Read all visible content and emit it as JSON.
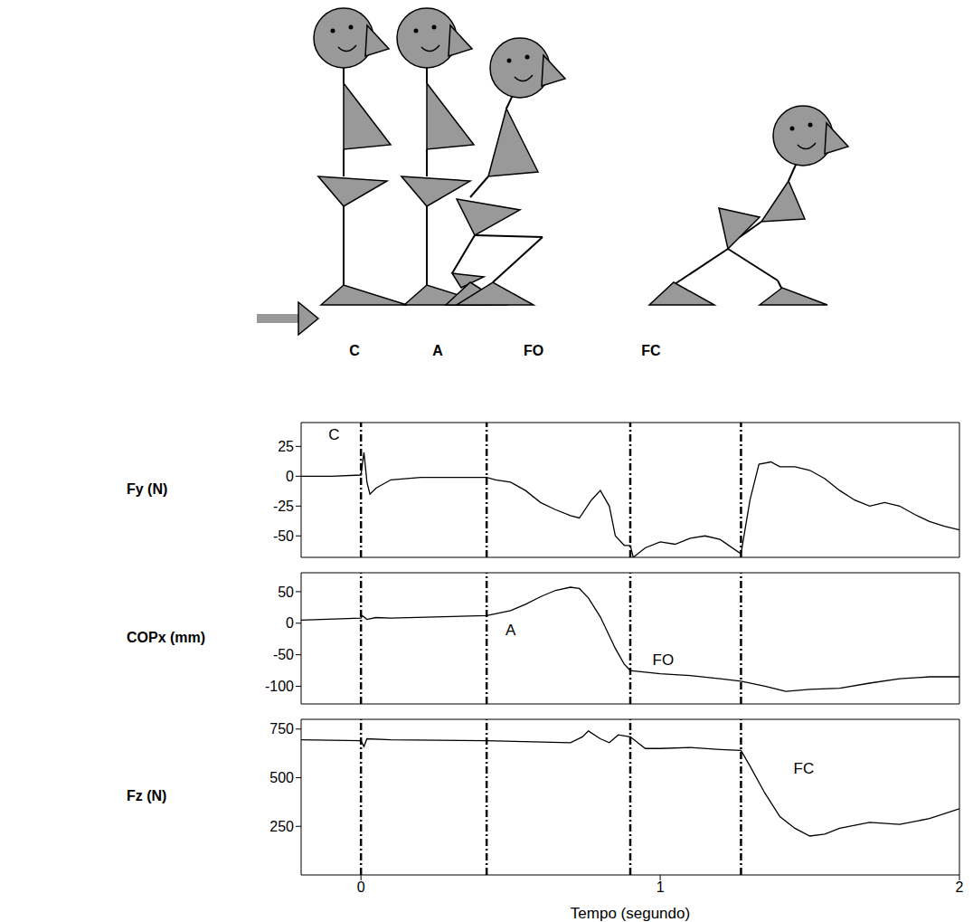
{
  "figure_labels": [
    "C",
    "A",
    "FO",
    "FC"
  ],
  "chart_data": [
    {
      "type": "line",
      "y_label": "Fy (N)",
      "color": "#000000",
      "xlim": [
        -0.2,
        2
      ],
      "xticks": [
        0,
        1,
        2
      ],
      "ylim": [
        -68,
        45
      ],
      "yticks": [
        -50,
        -25,
        0,
        25
      ],
      "tick_labels": "y",
      "vertical_lines": [
        0,
        0.42,
        0.9,
        1.27
      ],
      "annotations": [
        {
          "text": "C",
          "x": -0.09,
          "y": 35
        }
      ],
      "x": [
        -0.2,
        -0.1,
        0,
        0.01,
        0.02,
        0.03,
        0.05,
        0.1,
        0.2,
        0.42,
        0.45,
        0.5,
        0.55,
        0.6,
        0.65,
        0.7,
        0.73,
        0.77,
        0.8,
        0.83,
        0.85,
        0.88,
        0.9,
        0.91,
        0.95,
        1.0,
        1.05,
        1.1,
        1.15,
        1.2,
        1.27,
        1.3,
        1.33,
        1.37,
        1.4,
        1.45,
        1.5,
        1.55,
        1.6,
        1.65,
        1.7,
        1.75,
        1.8,
        1.85,
        1.9,
        1.95,
        2.0
      ],
      "values": [
        0,
        0,
        1,
        20,
        -5,
        -15,
        -10,
        -3,
        -1,
        -1,
        -3,
        -5,
        -12,
        -22,
        -28,
        -33,
        -35,
        -20,
        -12,
        -25,
        -50,
        -58,
        -58,
        -68,
        -60,
        -55,
        -57,
        -52,
        -50,
        -53,
        -65,
        -20,
        10,
        12,
        8,
        8,
        5,
        -2,
        -12,
        -20,
        -25,
        -22,
        -25,
        -32,
        -38,
        -42,
        -45
      ]
    },
    {
      "type": "line",
      "y_label": "COPx (mm)",
      "color": "#000000",
      "xlim": [
        -0.2,
        2
      ],
      "xticks": [
        0,
        1,
        2
      ],
      "ylim": [
        -128,
        80
      ],
      "yticks": [
        -100,
        -50,
        0,
        50
      ],
      "tick_labels": "y",
      "vertical_lines": [
        0,
        0.42,
        0.9,
        1.27
      ],
      "annotations": [
        {
          "text": "A",
          "x": 0.5,
          "y": -10
        },
        {
          "text": "FO",
          "x": 1.01,
          "y": -58
        }
      ],
      "x": [
        -0.2,
        0,
        0.005,
        0.02,
        0.05,
        0.1,
        0.42,
        0.5,
        0.55,
        0.6,
        0.65,
        0.7,
        0.73,
        0.76,
        0.8,
        0.85,
        0.88,
        0.9,
        1.0,
        1.1,
        1.2,
        1.27,
        1.35,
        1.42,
        1.5,
        1.6,
        1.7,
        1.8,
        1.9,
        2.0
      ],
      "values": [
        5,
        8,
        12,
        6,
        9,
        8,
        12,
        20,
        30,
        42,
        52,
        57,
        55,
        40,
        10,
        -40,
        -65,
        -75,
        -80,
        -83,
        -88,
        -92,
        -100,
        -108,
        -105,
        -103,
        -95,
        -88,
        -85,
        -85
      ]
    },
    {
      "type": "line",
      "y_label": "Fz (N)",
      "x_label": "Tempo (segundo)",
      "color": "#000000",
      "xlim": [
        -0.2,
        2
      ],
      "xticks": [
        0,
        1,
        2
      ],
      "ylim": [
        0,
        800
      ],
      "yticks": [
        250,
        500,
        750
      ],
      "vertical_lines": [
        0,
        0.42,
        0.9,
        1.27
      ],
      "annotations": [
        {
          "text": "FC",
          "x": 1.48,
          "y": 550
        }
      ],
      "x": [
        -0.2,
        0,
        0.01,
        0.02,
        0.1,
        0.42,
        0.7,
        0.74,
        0.76,
        0.8,
        0.83,
        0.86,
        0.9,
        0.95,
        1.0,
        1.1,
        1.2,
        1.27,
        1.3,
        1.35,
        1.4,
        1.45,
        1.5,
        1.55,
        1.6,
        1.7,
        1.8,
        1.9,
        2.0
      ],
      "values": [
        695,
        690,
        660,
        700,
        695,
        690,
        680,
        710,
        740,
        700,
        680,
        720,
        710,
        650,
        650,
        655,
        645,
        640,
        560,
        420,
        300,
        240,
        200,
        210,
        240,
        270,
        260,
        290,
        340
      ]
    }
  ]
}
